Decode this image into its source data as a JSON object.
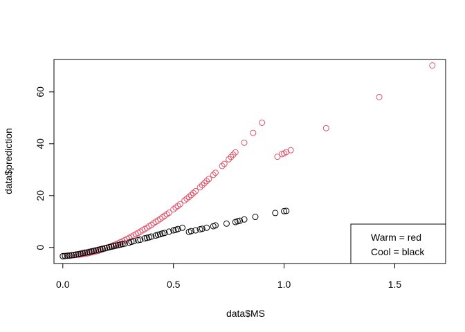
{
  "chart_data": {
    "type": "scatter",
    "title": "",
    "xlabel": "data$MS",
    "ylabel": "data$prediction",
    "xlim": [
      -0.04,
      1.73
    ],
    "ylim": [
      -6.2,
      72.5
    ],
    "x_ticks": [
      0.0,
      0.5,
      1.0,
      1.5
    ],
    "x_tick_labels": [
      "0.0",
      "0.5",
      "1.0",
      "1.5"
    ],
    "y_ticks": [
      0,
      20,
      40,
      60
    ],
    "y_tick_labels": [
      "0",
      "20",
      "40",
      "60"
    ],
    "grid": false,
    "legend": {
      "placement": "bottom-right",
      "entries": [
        "Warm = red",
        "Cool = black"
      ]
    },
    "series": [
      {
        "color": "#DF536B",
        "marker": "open-circle",
        "x": [
          0.0,
          0.01,
          0.02,
          0.03,
          0.04,
          0.05,
          0.06,
          0.07,
          0.08,
          0.09,
          0.1,
          0.11,
          0.12,
          0.13,
          0.14,
          0.15,
          0.16,
          0.17,
          0.18,
          0.19,
          0.2,
          0.21,
          0.22,
          0.23,
          0.24,
          0.25,
          0.26,
          0.27,
          0.28,
          0.29,
          0.3,
          0.31,
          0.32,
          0.33,
          0.34,
          0.35,
          0.36,
          0.37,
          0.38,
          0.39,
          0.4,
          0.41,
          0.42,
          0.43,
          0.44,
          0.45,
          0.46,
          0.47,
          0.48,
          0.5,
          0.51,
          0.52,
          0.53,
          0.55,
          0.56,
          0.57,
          0.58,
          0.59,
          0.6,
          0.62,
          0.63,
          0.64,
          0.65,
          0.66,
          0.68,
          0.69,
          0.72,
          0.73,
          0.75,
          0.76,
          0.77,
          0.78,
          0.82,
          0.86,
          0.9,
          0.97,
          0.99,
          1.0,
          1.01,
          1.03,
          1.19,
          1.43,
          1.67
        ],
        "y": [
          -3.3,
          -3.3,
          -3.2,
          -3.2,
          -3.1,
          -3.0,
          -2.9,
          -2.8,
          -2.7,
          -2.6,
          -2.4,
          -2.3,
          -2.1,
          -1.9,
          -1.7,
          -1.5,
          -1.3,
          -1.0,
          -0.7,
          -0.4,
          -0.1,
          0.2,
          0.5,
          0.9,
          1.2,
          1.6,
          2.0,
          2.4,
          2.8,
          3.3,
          3.7,
          4.2,
          4.6,
          5.1,
          5.6,
          6.1,
          6.6,
          7.1,
          7.6,
          8.2,
          8.7,
          9.3,
          9.9,
          10.4,
          11.0,
          11.6,
          12.2,
          12.8,
          13.4,
          14.7,
          15.4,
          16.0,
          16.7,
          18.1,
          18.8,
          19.5,
          20.2,
          21.0,
          21.7,
          23.2,
          24.0,
          24.8,
          25.6,
          26.4,
          28.0,
          28.8,
          31.4,
          32.2,
          34.0,
          34.9,
          35.8,
          36.7,
          40.4,
          44.2,
          48.1,
          35.0,
          36.0,
          36.3,
          36.8,
          37.5,
          46.0,
          58.0,
          70.2
        ]
      },
      {
        "color": "#000000",
        "marker": "open-circle",
        "x": [
          0.0,
          0.01,
          0.02,
          0.03,
          0.04,
          0.05,
          0.06,
          0.07,
          0.08,
          0.09,
          0.1,
          0.11,
          0.12,
          0.13,
          0.14,
          0.15,
          0.16,
          0.17,
          0.18,
          0.19,
          0.2,
          0.21,
          0.22,
          0.23,
          0.24,
          0.25,
          0.26,
          0.27,
          0.28,
          0.3,
          0.31,
          0.32,
          0.34,
          0.35,
          0.37,
          0.38,
          0.39,
          0.4,
          0.42,
          0.43,
          0.44,
          0.45,
          0.46,
          0.48,
          0.5,
          0.51,
          0.52,
          0.54,
          0.57,
          0.58,
          0.6,
          0.62,
          0.63,
          0.65,
          0.68,
          0.69,
          0.74,
          0.78,
          0.79,
          0.8,
          0.82,
          0.87,
          0.96,
          1.0,
          1.01
        ],
        "y": [
          -3.4,
          -3.3,
          -3.2,
          -3.1,
          -3.0,
          -2.9,
          -2.7,
          -2.6,
          -2.4,
          -2.2,
          -2.0,
          -1.9,
          -1.7,
          -1.5,
          -1.3,
          -1.1,
          -0.9,
          -0.7,
          -0.5,
          -0.3,
          -0.1,
          0.1,
          0.3,
          0.5,
          0.7,
          0.9,
          1.1,
          1.3,
          1.5,
          1.9,
          2.2,
          2.4,
          2.8,
          3.0,
          3.5,
          3.7,
          3.9,
          4.2,
          4.6,
          4.9,
          5.1,
          5.4,
          5.6,
          6.1,
          6.6,
          6.8,
          7.1,
          7.6,
          6.0,
          6.3,
          6.6,
          7.0,
          7.2,
          7.6,
          8.2,
          8.5,
          9.2,
          9.8,
          10.1,
          10.3,
          10.8,
          11.8,
          13.3,
          14.0,
          14.1
        ]
      }
    ]
  }
}
